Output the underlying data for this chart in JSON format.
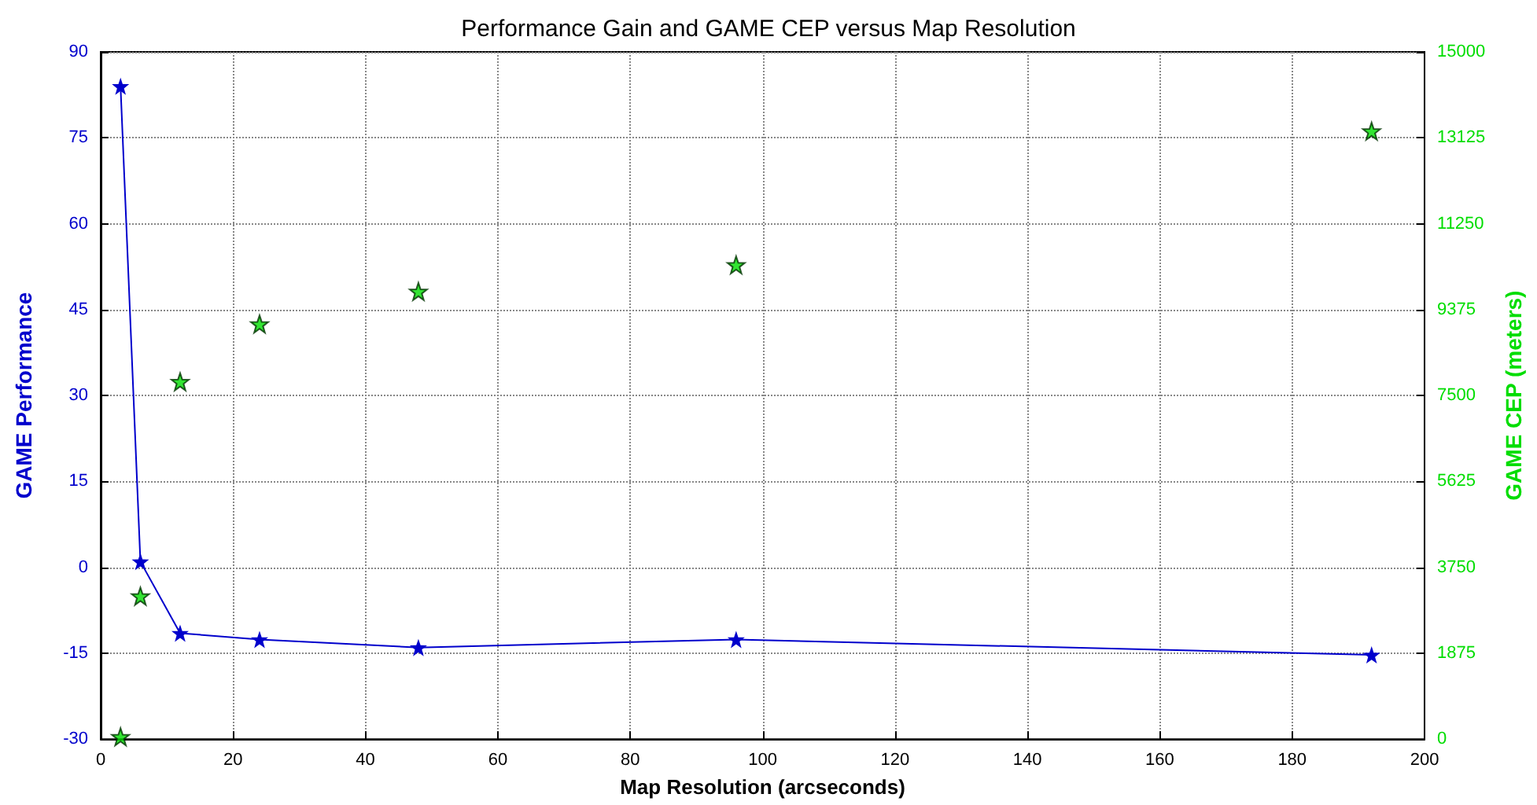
{
  "chart_data": {
    "type": "line",
    "title": "Performance Gain and GAME CEP versus Map Resolution",
    "xlabel": "Map Resolution (arcseconds)",
    "ylabel": "GAME Performance",
    "y2label": "GAME CEP (meters)",
    "x": [
      3,
      6,
      12,
      24,
      48,
      96,
      192
    ],
    "series": [
      {
        "color": "#0000cc",
        "values": [
          84,
          1,
          -11.5,
          -12.6,
          -14,
          -12.6,
          -15.3
        ]
      },
      {
        "type": "scatter",
        "axis": "y2",
        "color": "#00dd00",
        "values": [
          50,
          3120,
          7800,
          9060,
          9770,
          10350,
          13270
        ]
      }
    ],
    "xlim": [
      0,
      200
    ],
    "xticks": [
      0,
      20,
      40,
      60,
      80,
      100,
      120,
      140,
      160,
      180,
      200
    ],
    "ylim": [
      -30,
      90
    ],
    "yticks": [
      -30,
      -15,
      0,
      15,
      30,
      45,
      60,
      75,
      90
    ],
    "y2lim": [
      0,
      15000
    ],
    "y2ticks": [
      0,
      1875,
      3750,
      5625,
      7500,
      9375,
      11250,
      13125,
      15000
    ],
    "grid": true,
    "marker": "star",
    "line_style": "solid"
  }
}
